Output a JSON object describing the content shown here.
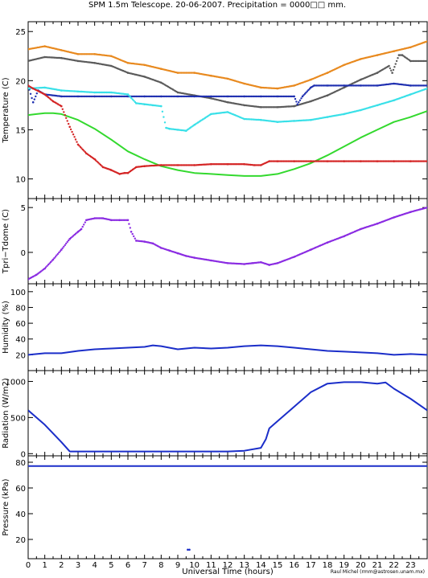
{
  "title": "SPM 1.5m Telescope. 20-06-2007. Precipitation = 0000□□ mm.",
  "credit": "Raul Michel (rmm@astrosen.unam.mx)",
  "xlabel": "Universal Time (hours)",
  "colors": {
    "orange": "#e8891e",
    "gray": "#5a5a5a",
    "navy": "#1f2fb0",
    "cyan": "#38e0e8",
    "green": "#33d92e",
    "red": "#d42424",
    "purple": "#8a2be2",
    "blue": "#1b2ec9"
  },
  "chart_data": [
    {
      "type": "line",
      "ylabel": "Temperature (C)",
      "xlim": [
        0,
        24
      ],
      "ylim": [
        8,
        26
      ],
      "xticks": [
        0,
        1,
        2,
        3,
        4,
        5,
        6,
        7,
        8,
        9,
        10,
        11,
        12,
        13,
        14,
        15,
        16,
        17,
        18,
        19,
        20,
        21,
        22,
        23
      ],
      "yticks": [
        10,
        15,
        20,
        25
      ],
      "series": [
        {
          "color": "orange",
          "style": "dots",
          "x": [
            0,
            1,
            2,
            3,
            4,
            5,
            6,
            7,
            8,
            9,
            10,
            11,
            12,
            13,
            14,
            15,
            16,
            17,
            18,
            19,
            20,
            21,
            22,
            23,
            24
          ],
          "y": [
            23.2,
            23.5,
            23.1,
            22.7,
            22.7,
            22.5,
            21.8,
            21.6,
            21.2,
            20.8,
            20.8,
            20.5,
            20.2,
            19.7,
            19.3,
            19.2,
            19.5,
            20.1,
            20.8,
            21.6,
            22.2,
            22.6,
            23.0,
            23.4,
            24.0
          ]
        },
        {
          "color": "gray",
          "style": "dots",
          "x": [
            0,
            1,
            2,
            3,
            4,
            5,
            6,
            7,
            8,
            9,
            10,
            11,
            12,
            13,
            14,
            15,
            16,
            17,
            18,
            19,
            20,
            21,
            21.7,
            21.9,
            22.3,
            22.5,
            23,
            24
          ],
          "y": [
            22.0,
            22.4,
            22.3,
            22.0,
            21.8,
            21.5,
            20.8,
            20.4,
            19.8,
            18.8,
            18.5,
            18.2,
            17.8,
            17.5,
            17.3,
            17.3,
            17.4,
            17.9,
            18.5,
            19.3,
            20.1,
            20.8,
            21.5,
            20.8,
            22.6,
            22.6,
            22.0,
            22.0
          ]
        },
        {
          "color": "navy",
          "style": "dots",
          "x": [
            0,
            0.3,
            0.6,
            1,
            2,
            3,
            4,
            5,
            6,
            7,
            8,
            9,
            10,
            11,
            12,
            13,
            14,
            15,
            16,
            16.2,
            16.5,
            17,
            17.2,
            18,
            19,
            20,
            21,
            22,
            23,
            24
          ],
          "y": [
            19.5,
            17.8,
            19.0,
            18.6,
            18.4,
            18.4,
            18.4,
            18.4,
            18.4,
            18.4,
            18.4,
            18.4,
            18.4,
            18.4,
            18.4,
            18.4,
            18.4,
            18.4,
            18.4,
            17.6,
            18.4,
            19.3,
            19.5,
            19.5,
            19.5,
            19.5,
            19.5,
            19.7,
            19.5,
            19.5
          ]
        },
        {
          "color": "cyan",
          "style": "dots",
          "x": [
            0,
            1,
            2,
            3,
            4,
            5,
            6,
            6.5,
            7,
            7.5,
            8,
            8.3,
            8.5,
            9,
            9.5,
            10,
            11,
            12,
            13,
            14,
            15,
            16,
            17,
            18,
            19,
            20,
            21,
            22,
            23,
            24
          ],
          "y": [
            19.2,
            19.3,
            19.0,
            18.9,
            18.8,
            18.8,
            18.6,
            17.7,
            17.6,
            17.5,
            17.4,
            15.2,
            15.1,
            15.0,
            14.9,
            15.5,
            16.6,
            16.8,
            16.1,
            16.0,
            15.8,
            15.9,
            16.0,
            16.3,
            16.6,
            17.0,
            17.5,
            18.0,
            18.6,
            19.2
          ]
        },
        {
          "color": "green",
          "style": "line",
          "x": [
            0,
            0.5,
            1,
            1.5,
            2,
            3,
            4,
            5,
            6,
            7,
            8,
            9,
            10,
            11,
            12,
            13,
            14,
            15,
            16,
            17,
            18,
            19,
            20,
            21,
            22,
            23,
            24
          ],
          "y": [
            16.5,
            16.6,
            16.7,
            16.7,
            16.6,
            16.0,
            15.1,
            14.0,
            12.8,
            12.0,
            11.3,
            10.9,
            10.6,
            10.5,
            10.4,
            10.3,
            10.3,
            10.5,
            11.0,
            11.6,
            12.4,
            13.3,
            14.2,
            15.0,
            15.8,
            16.3,
            16.9
          ]
        },
        {
          "color": "red",
          "style": "dots",
          "x": [
            0,
            0.3,
            1,
            1.5,
            2,
            2.5,
            3,
            3.5,
            4,
            4.5,
            5,
            5.5,
            5.8,
            6,
            6.5,
            7,
            8,
            9,
            10,
            11,
            12,
            13,
            13.6,
            14,
            14.5,
            15,
            16,
            17,
            18,
            19,
            20,
            21,
            22,
            23,
            24
          ],
          "y": [
            19.5,
            19.2,
            18.6,
            17.9,
            17.4,
            15.3,
            13.5,
            12.6,
            12.0,
            11.2,
            10.9,
            10.5,
            10.6,
            10.6,
            11.2,
            11.3,
            11.4,
            11.4,
            11.4,
            11.5,
            11.5,
            11.5,
            11.4,
            11.4,
            11.8,
            11.8,
            11.8,
            11.8,
            11.8,
            11.8,
            11.8,
            11.8,
            11.8,
            11.8,
            11.8
          ]
        }
      ]
    },
    {
      "type": "line",
      "ylabel": "Tpri−Tdome (C)",
      "xlim": [
        0,
        24
      ],
      "ylim": [
        -3.5,
        6
      ],
      "yticks": [
        0,
        5
      ],
      "series": [
        {
          "color": "purple",
          "style": "dots",
          "x": [
            0,
            0.5,
            1,
            1.5,
            2,
            2.5,
            3,
            3.2,
            3.5,
            4,
            4.5,
            5,
            5.5,
            6,
            6.2,
            6.5,
            7,
            7.5,
            8,
            8.5,
            9,
            9.5,
            10,
            11,
            12,
            13,
            13.5,
            14,
            14.5,
            15,
            16,
            17,
            18,
            19,
            20,
            21,
            22,
            23,
            24
          ],
          "y": [
            -3.0,
            -2.5,
            -1.8,
            -0.8,
            0.3,
            1.5,
            2.3,
            2.6,
            3.6,
            3.8,
            3.8,
            3.6,
            3.6,
            3.6,
            2.3,
            1.3,
            1.2,
            1.0,
            0.5,
            0.2,
            -0.1,
            -0.4,
            -0.6,
            -0.9,
            -1.2,
            -1.3,
            -1.2,
            -1.1,
            -1.4,
            -1.2,
            -0.5,
            0.3,
            1.1,
            1.8,
            2.6,
            3.2,
            3.9,
            4.5,
            5.0
          ]
        }
      ]
    },
    {
      "type": "line",
      "ylabel": "Humidity (%)",
      "xlim": [
        0,
        24
      ],
      "ylim": [
        0,
        110
      ],
      "yticks": [
        20,
        40,
        60,
        80,
        100
      ],
      "series": [
        {
          "color": "blue",
          "style": "line",
          "x": [
            0,
            1,
            2,
            3,
            4,
            5,
            6,
            7,
            7.5,
            8,
            9,
            10,
            11,
            12,
            13,
            14,
            15,
            16,
            17,
            18,
            19,
            20,
            21,
            22,
            23,
            24
          ],
          "y": [
            20,
            22,
            22,
            25,
            27,
            28,
            29,
            30,
            32,
            31,
            27,
            29,
            28,
            29,
            31,
            32,
            31,
            29,
            27,
            25,
            24,
            23,
            22,
            20,
            21,
            20
          ]
        }
      ]
    },
    {
      "type": "line",
      "ylabel": "Radiation (W/m2)",
      "xlim": [
        0,
        24
      ],
      "ylim": [
        -30,
        1150
      ],
      "yticks": [
        0,
        500,
        1000
      ],
      "series": [
        {
          "color": "blue",
          "style": "line",
          "x": [
            0,
            1,
            2,
            2.5,
            3,
            4,
            5,
            6,
            7,
            8,
            9,
            10,
            11,
            12,
            13,
            14,
            14.3,
            14.5,
            15,
            16,
            17,
            18,
            19,
            20,
            21,
            21.5,
            22,
            23,
            24
          ],
          "y": [
            600,
            400,
            160,
            30,
            30,
            30,
            30,
            30,
            30,
            30,
            30,
            30,
            30,
            30,
            40,
            80,
            200,
            350,
            450,
            650,
            850,
            970,
            990,
            990,
            970,
            985,
            900,
            760,
            600
          ]
        }
      ]
    },
    {
      "type": "line",
      "ylabel": "Pressure (kPa)",
      "xlim": [
        0,
        24
      ],
      "ylim": [
        5,
        85
      ],
      "yticks": [
        20,
        40,
        60,
        80
      ],
      "series": [
        {
          "color": "blue",
          "style": "line",
          "x": [
            0,
            24
          ],
          "y": [
            77,
            77
          ]
        },
        {
          "color": "blue",
          "style": "dots",
          "x": [
            9.6,
            9.7
          ],
          "y": [
            12,
            12
          ]
        }
      ]
    }
  ]
}
